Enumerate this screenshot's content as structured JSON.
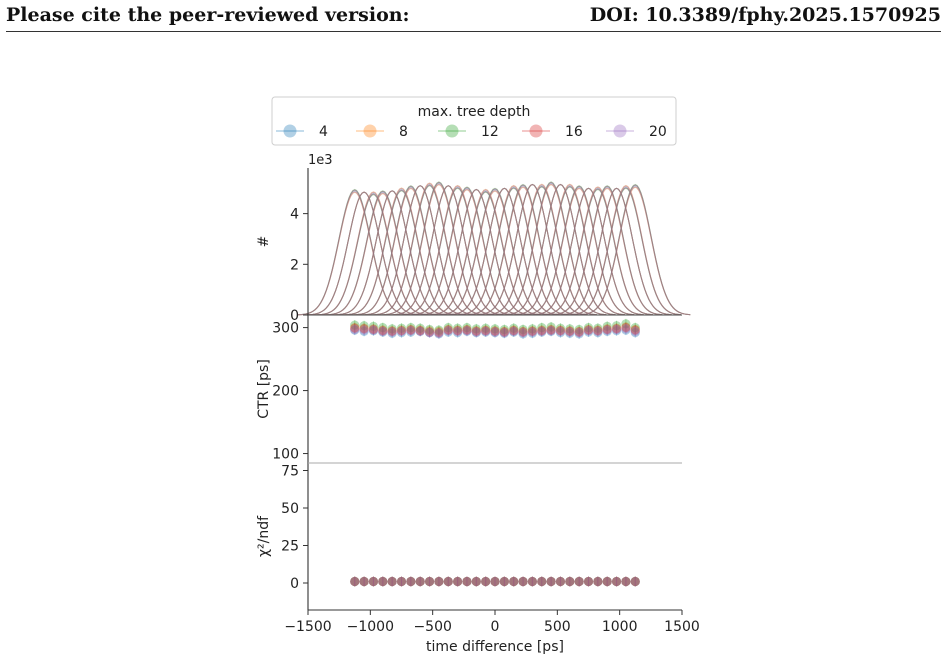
{
  "header": {
    "left_text": "Please cite the peer-reviewed version:",
    "right_text": "DOI: 10.3389/fphy.2025.1570925"
  },
  "chart_data": {
    "type": "multi-panel",
    "legend": {
      "title": "max. tree depth",
      "placement": "top",
      "entries": [
        "4",
        "8",
        "12",
        "16",
        "20"
      ],
      "colors": [
        "#1f77b4",
        "#ff7f0e",
        "#2ca02c",
        "#d62728",
        "#9467bd"
      ]
    },
    "xaxis": {
      "label": "time difference [ps]",
      "lim": [
        -1500,
        1500
      ],
      "ticks": [
        -1500,
        -1000,
        -500,
        0,
        500,
        1000,
        1500
      ],
      "tick_labels": [
        "−1500",
        "−1000",
        "−500",
        "0",
        "500",
        "1000",
        "1500"
      ]
    },
    "panels": [
      {
        "type": "line",
        "ylabel": "#",
        "offset_text": "1e3",
        "ylim": [
          0,
          5.8
        ],
        "yticks": [
          0,
          2,
          4
        ],
        "ytick_labels": [
          "0",
          "2",
          "4"
        ],
        "peak_centers": [
          -1125,
          -1050,
          -975,
          -900,
          -825,
          -750,
          -675,
          -600,
          -525,
          -450,
          -375,
          -300,
          -225,
          -150,
          -75,
          0,
          75,
          150,
          225,
          300,
          375,
          450,
          525,
          600,
          675,
          750,
          825,
          900,
          975,
          1050,
          1125
        ],
        "peak_heights": [
          4.9,
          4.85,
          4.8,
          4.85,
          4.9,
          4.95,
          5.05,
          5.1,
          5.15,
          5.2,
          5.1,
          5.05,
          5.0,
          4.95,
          4.9,
          4.95,
          5.0,
          5.05,
          5.1,
          5.15,
          5.1,
          5.2,
          5.15,
          5.1,
          5.05,
          5.0,
          5.0,
          5.05,
          5.0,
          5.05,
          5.1
        ],
        "peak_sigma_ps": 127
      },
      {
        "type": "scatter",
        "ylabel": "CTR [ps]",
        "ylim": [
          85,
          320
        ],
        "yticks": [
          100,
          200,
          300
        ],
        "ytick_labels": [
          "100",
          "200",
          "300"
        ],
        "x": [
          -1125,
          -1050,
          -975,
          -900,
          -825,
          -750,
          -675,
          -600,
          -525,
          -450,
          -375,
          -300,
          -225,
          -150,
          -75,
          0,
          75,
          150,
          225,
          300,
          375,
          450,
          525,
          600,
          675,
          750,
          825,
          900,
          975,
          1050,
          1125
        ],
        "series": [
          {
            "name": "4",
            "values": [
              296,
              294,
              295,
              293,
              291,
              292,
              293,
              294,
              292,
              290,
              293,
              292,
              294,
              292,
              293,
              292,
              291,
              293,
              290,
              291,
              293,
              294,
              292,
              291,
              290,
              293,
              292,
              294,
              295,
              296,
              292
            ]
          },
          {
            "name": "8",
            "values": [
              300,
              299,
              298,
              296,
              295,
              296,
              297,
              296,
              295,
              294,
              297,
              296,
              297,
              295,
              296,
              295,
              294,
              296,
              294,
              295,
              296,
              297,
              296,
              295,
              294,
              297,
              296,
              298,
              299,
              301,
              297
            ]
          },
          {
            "name": "12",
            "values": [
              304,
              303,
              302,
              300,
              298,
              299,
              300,
              299,
              297,
              296,
              300,
              299,
              300,
              298,
              299,
              298,
              297,
              299,
              297,
              298,
              300,
              301,
              299,
              298,
              297,
              300,
              299,
              302,
              303,
              306,
              300
            ]
          },
          {
            "name": "16",
            "values": [
              299,
              298,
              297,
              295,
              294,
              295,
              296,
              295,
              293,
              292,
              296,
              295,
              296,
              294,
              295,
              294,
              293,
              295,
              293,
              294,
              295,
              296,
              295,
              294,
              293,
              296,
              295,
              297,
              298,
              300,
              296
            ]
          },
          {
            "name": "20",
            "values": [
              297,
              296,
              296,
              294,
              293,
              294,
              295,
              294,
              292,
              291,
              295,
              294,
              295,
              293,
              294,
              293,
              292,
              294,
              292,
              293,
              294,
              295,
              294,
              293,
              292,
              295,
              294,
              296,
              297,
              298,
              294
            ]
          }
        ]
      },
      {
        "type": "scatter",
        "ylabel": "χ²/ndf",
        "ylim": [
          -18,
          80
        ],
        "yticks": [
          0,
          25,
          50,
          75
        ],
        "ytick_labels": [
          "0",
          "25",
          "50",
          "75"
        ],
        "x": [
          -1125,
          -1050,
          -975,
          -900,
          -825,
          -750,
          -675,
          -600,
          -525,
          -450,
          -375,
          -300,
          -225,
          -150,
          -75,
          0,
          75,
          150,
          225,
          300,
          375,
          450,
          525,
          600,
          675,
          750,
          825,
          900,
          975,
          1050,
          1125
        ],
        "series": [
          {
            "name": "4",
            "values": [
              1,
              1,
              1,
              1,
              1,
              1,
              1,
              1,
              1,
              1,
              1,
              1,
              1,
              1,
              1,
              1,
              1,
              1,
              1,
              1,
              1,
              1,
              1,
              1,
              1,
              1,
              1,
              1,
              1,
              1,
              1
            ]
          },
          {
            "name": "8",
            "values": [
              1,
              1,
              1,
              1,
              1,
              1,
              1,
              1,
              1,
              1,
              1,
              1,
              1,
              1,
              1,
              1,
              1,
              1,
              1,
              1,
              1,
              1,
              1,
              1,
              1,
              1,
              1,
              1,
              1,
              1,
              1
            ]
          },
          {
            "name": "12",
            "values": [
              1,
              1,
              1,
              1,
              1,
              1,
              1,
              1,
              1,
              1,
              1,
              1,
              1,
              1,
              1,
              1,
              1,
              1,
              1,
              1,
              1,
              1,
              1,
              1,
              1,
              1,
              1,
              1,
              1,
              1,
              1
            ]
          },
          {
            "name": "16",
            "values": [
              1,
              1,
              1,
              1,
              1,
              1,
              1,
              1,
              1,
              1,
              1,
              1,
              1,
              1,
              1,
              1,
              1,
              1,
              1,
              1,
              1,
              1,
              1,
              1,
              1,
              1,
              1,
              1,
              1,
              1,
              1
            ]
          },
          {
            "name": "20",
            "values": [
              1,
              1,
              1,
              1,
              1,
              1,
              1,
              1,
              1,
              1,
              1,
              1,
              1,
              1,
              1,
              1,
              1,
              1,
              1,
              1,
              1,
              1,
              1,
              1,
              1,
              1,
              1,
              1,
              1,
              1,
              1
            ]
          }
        ]
      }
    ]
  }
}
